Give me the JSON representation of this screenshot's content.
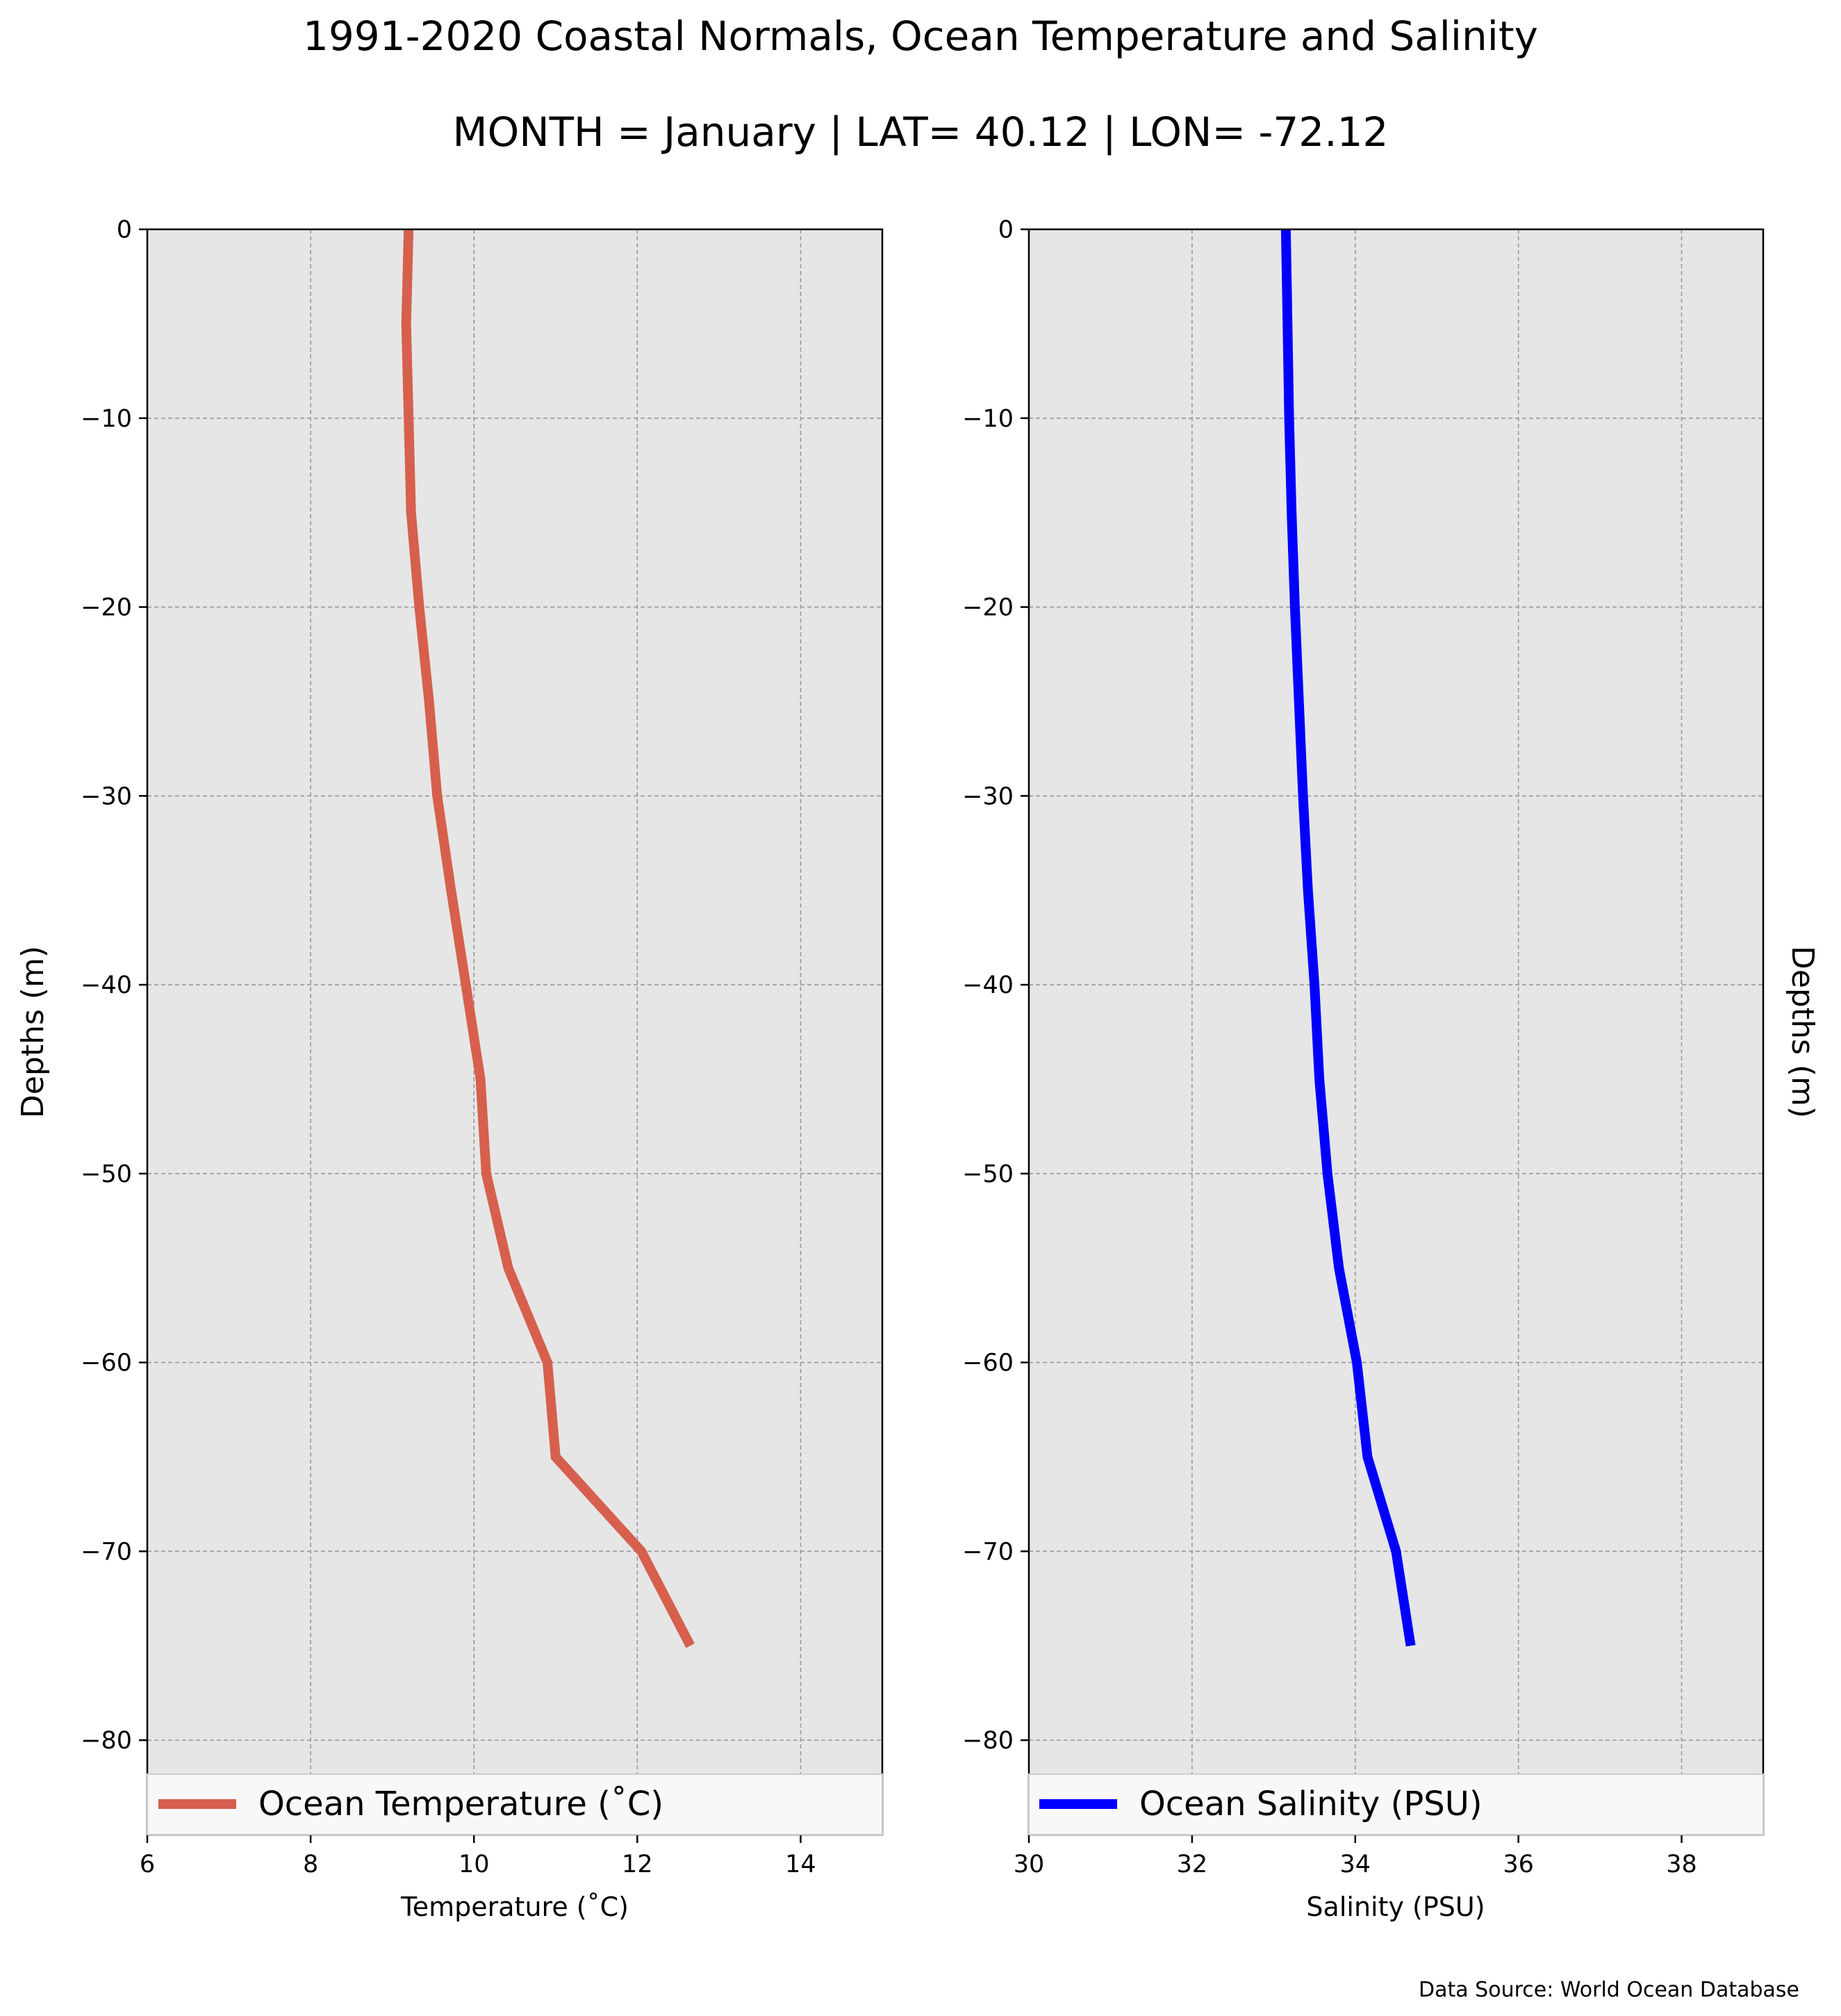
{
  "title": "1991-2020 Coastal Normals, Ocean Temperature and Salinity",
  "subtitle": "MONTH = January | LAT= 40.12 | LON= -72.12",
  "source": "Data Source: World Ocean Database",
  "colors": {
    "panel_bg": "#e6e6e6",
    "grid": "#999999",
    "temperature": "#d6604d",
    "salinity": "#0000ff"
  },
  "chart_data": [
    {
      "type": "line",
      "xlabel": "Temperature ($^\\circ$C)",
      "xlabel_display": "Temperature (˚C)",
      "ylabel": "Depths (m)",
      "xlim": [
        6,
        15
      ],
      "ylim": [
        -85,
        0
      ],
      "xticks": [
        6,
        8,
        10,
        12,
        14
      ],
      "yticks": [
        0,
        -10,
        -20,
        -30,
        -40,
        -50,
        -60,
        -70,
        -80
      ],
      "grid": true,
      "legend_position": "bottom",
      "series": [
        {
          "name": "Ocean Temperature (˚C)",
          "color": "#d6604d",
          "x": [
            9.2,
            9.17,
            9.2,
            9.23,
            9.33,
            9.45,
            9.55,
            9.72,
            9.9,
            10.08,
            10.15,
            10.42,
            10.9,
            11.0,
            12.05,
            12.65
          ],
          "y": [
            0,
            -5,
            -10,
            -15,
            -20,
            -25,
            -30,
            -35,
            -40,
            -45,
            -50,
            -55,
            -60,
            -65,
            -70,
            -75
          ]
        }
      ]
    },
    {
      "type": "line",
      "xlabel": "Salinity (PSU)",
      "ylabel": "Depths (m)",
      "xlim": [
        30,
        39
      ],
      "ylim": [
        -85,
        0
      ],
      "xticks": [
        30,
        32,
        34,
        36,
        38
      ],
      "yticks": [
        0,
        -10,
        -20,
        -30,
        -40,
        -50,
        -60,
        -70,
        -80
      ],
      "grid": true,
      "legend_position": "bottom",
      "series": [
        {
          "name": "Ocean Salinity (PSU)",
          "color": "#0000ff",
          "x": [
            33.15,
            33.17,
            33.19,
            33.22,
            33.26,
            33.31,
            33.36,
            33.42,
            33.5,
            33.56,
            33.66,
            33.8,
            34.02,
            34.15,
            34.5,
            34.68
          ],
          "y": [
            0,
            -5,
            -10,
            -15,
            -20,
            -25,
            -30,
            -35,
            -40,
            -45,
            -50,
            -55,
            -60,
            -65,
            -70,
            -75
          ]
        }
      ]
    }
  ]
}
